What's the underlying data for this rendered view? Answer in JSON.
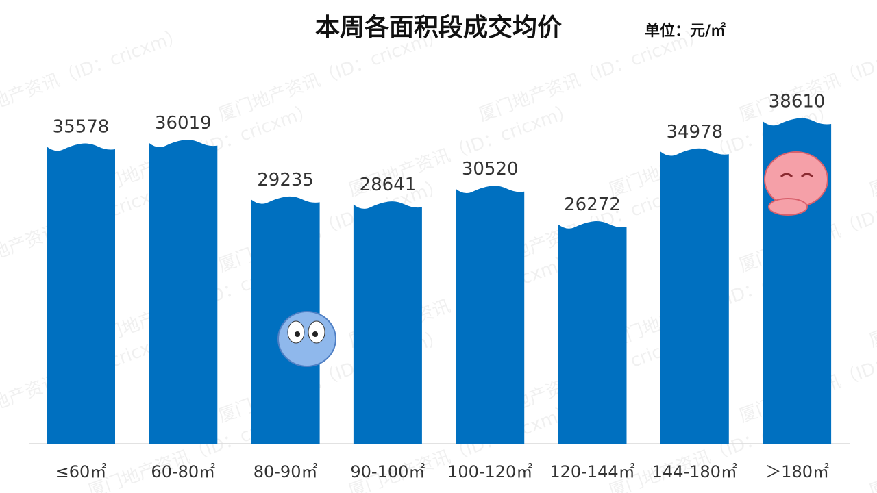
{
  "chart_data": {
    "type": "bar",
    "title": "本周各面积段成交均价",
    "unit": "单位：元/㎡",
    "watermark": "厦门地产资讯（ID：cricxm）",
    "categories": [
      "≤60㎡",
      "60-80㎡",
      "80-90㎡",
      "90-100㎡",
      "100-120㎡",
      "120-144㎡",
      "144-180㎡",
      "＞180㎡"
    ],
    "values": [
      35578,
      36019,
      29235,
      28641,
      30520,
      26272,
      34978,
      38610
    ],
    "color": "#0070c0"
  }
}
